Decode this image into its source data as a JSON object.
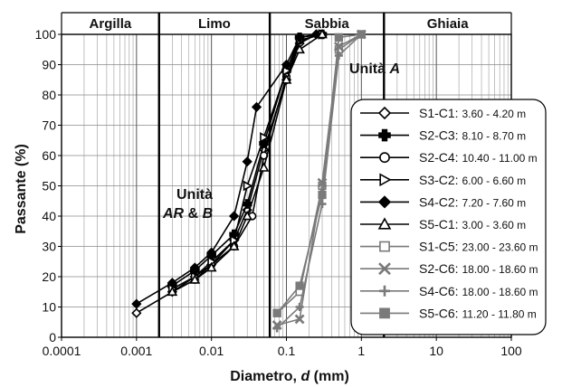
{
  "chart_data": {
    "type": "line",
    "xscale": "log",
    "xlim": [
      0.0001,
      100
    ],
    "ylim": [
      0,
      100
    ],
    "xlabel_text": "Diametro, ",
    "xlabel_var": "d",
    "xlabel_unit": " (mm)",
    "ylabel": "Passante (%)",
    "xticks": [
      {
        "v": 0.0001,
        "label": "0.0001"
      },
      {
        "v": 0.001,
        "label": "0.001"
      },
      {
        "v": 0.01,
        "label": "0.01"
      },
      {
        "v": 0.1,
        "label": "0.1"
      },
      {
        "v": 1,
        "label": "1"
      },
      {
        "v": 10,
        "label": "10"
      },
      {
        "v": 100,
        "label": "100"
      }
    ],
    "yticks": [
      0,
      10,
      20,
      30,
      40,
      50,
      60,
      70,
      80,
      90,
      100
    ],
    "zones": [
      {
        "label": "Argilla",
        "from": 0.0001,
        "to": 0.002
      },
      {
        "label": "Limo",
        "from": 0.002,
        "to": 0.06
      },
      {
        "label": "Sabbia",
        "from": 0.06,
        "to": 2
      },
      {
        "label": "Ghiaia",
        "from": 2,
        "to": 100
      }
    ],
    "annotations": [
      {
        "id": "unit-a",
        "line1": "Unità ",
        "line1_italic": "A"
      },
      {
        "id": "unit-arb",
        "line1": "Unità",
        "line2_italic": "AR",
        "line2": " & ",
        "line2_italic2": "B"
      }
    ],
    "legend_position": "right",
    "series": [
      {
        "id": "s1c1",
        "name": "S1-C1",
        "range": "3.60 - 4.20 m",
        "marker": "diamond-open",
        "color": "#000000",
        "points": [
          [
            0.001,
            8
          ],
          [
            0.003,
            15
          ],
          [
            0.006,
            20
          ],
          [
            0.01,
            24
          ],
          [
            0.02,
            32
          ],
          [
            0.03,
            42
          ],
          [
            0.05,
            62
          ],
          [
            0.1,
            85
          ],
          [
            0.15,
            97
          ],
          [
            0.25,
            100
          ]
        ]
      },
      {
        "id": "s2c3",
        "name": "S2-C3",
        "range": "8.10 - 8.70 m",
        "marker": "cross-filled",
        "color": "#000000",
        "points": [
          [
            0.003,
            17
          ],
          [
            0.006,
            22
          ],
          [
            0.01,
            27
          ],
          [
            0.02,
            34
          ],
          [
            0.03,
            44
          ],
          [
            0.05,
            64
          ],
          [
            0.1,
            88
          ],
          [
            0.15,
            99
          ],
          [
            0.3,
            100
          ]
        ]
      },
      {
        "id": "s2c4",
        "name": "S2-C4",
        "range": "10.40 - 11.00 m",
        "marker": "circle-open",
        "color": "#000000",
        "points": [
          [
            0.003,
            15
          ],
          [
            0.006,
            19
          ],
          [
            0.01,
            24
          ],
          [
            0.02,
            30
          ],
          [
            0.035,
            40
          ],
          [
            0.05,
            60
          ],
          [
            0.1,
            86
          ],
          [
            0.15,
            98
          ],
          [
            0.3,
            100
          ]
        ]
      },
      {
        "id": "s3c2",
        "name": "S3-C2",
        "range": "6.00 - 6.60 m",
        "marker": "triangle-right-open",
        "color": "#000000",
        "points": [
          [
            0.003,
            16
          ],
          [
            0.006,
            20
          ],
          [
            0.01,
            25
          ],
          [
            0.02,
            32
          ],
          [
            0.03,
            50
          ],
          [
            0.05,
            66
          ],
          [
            0.1,
            88
          ],
          [
            0.15,
            98
          ],
          [
            0.3,
            100
          ]
        ]
      },
      {
        "id": "s4c2",
        "name": "S4-C2",
        "range": "7.20 - 7.60 m",
        "marker": "diamond-filled",
        "color": "#000000",
        "points": [
          [
            0.001,
            11
          ],
          [
            0.003,
            18
          ],
          [
            0.006,
            23
          ],
          [
            0.01,
            28
          ],
          [
            0.02,
            40
          ],
          [
            0.03,
            58
          ],
          [
            0.04,
            76
          ],
          [
            0.1,
            90
          ],
          [
            0.15,
            99
          ],
          [
            0.25,
            100
          ]
        ]
      },
      {
        "id": "s5c1",
        "name": "S5-C1",
        "range": "3.00 - 3.60 m",
        "marker": "triangle-open",
        "color": "#000000",
        "points": [
          [
            0.003,
            15
          ],
          [
            0.006,
            19
          ],
          [
            0.01,
            23
          ],
          [
            0.02,
            30
          ],
          [
            0.03,
            40
          ],
          [
            0.05,
            56
          ],
          [
            0.1,
            85
          ],
          [
            0.15,
            95
          ],
          [
            0.3,
            100
          ]
        ]
      },
      {
        "id": "s1c5",
        "name": "S1-C5",
        "range": "23.00 - 23.60 m",
        "marker": "square-open",
        "color": "#7a7a7a",
        "points": [
          [
            0.075,
            8
          ],
          [
            0.15,
            15
          ],
          [
            0.3,
            50
          ],
          [
            0.5,
            95
          ],
          [
            1,
            100
          ]
        ]
      },
      {
        "id": "s2c6",
        "name": "S2-C6",
        "range": "18.00 - 18.60 m",
        "marker": "x",
        "color": "#7a7a7a",
        "points": [
          [
            0.075,
            4
          ],
          [
            0.15,
            6
          ],
          [
            0.3,
            51
          ],
          [
            0.5,
            96
          ],
          [
            1,
            100
          ]
        ]
      },
      {
        "id": "s4c6",
        "name": "S4-C6",
        "range": "18.00 - 18.60 m",
        "marker": "plus",
        "color": "#7a7a7a",
        "points": [
          [
            0.075,
            3
          ],
          [
            0.15,
            10
          ],
          [
            0.3,
            44
          ],
          [
            0.5,
            93
          ],
          [
            1,
            100
          ]
        ]
      },
      {
        "id": "s5c6",
        "name": "S5-C6",
        "range": "11.20 - 11.80 m",
        "marker": "square-filled",
        "color": "#7a7a7a",
        "points": [
          [
            0.075,
            8
          ],
          [
            0.15,
            17
          ],
          [
            0.3,
            47
          ],
          [
            0.5,
            99
          ],
          [
            1,
            100
          ]
        ]
      }
    ]
  }
}
